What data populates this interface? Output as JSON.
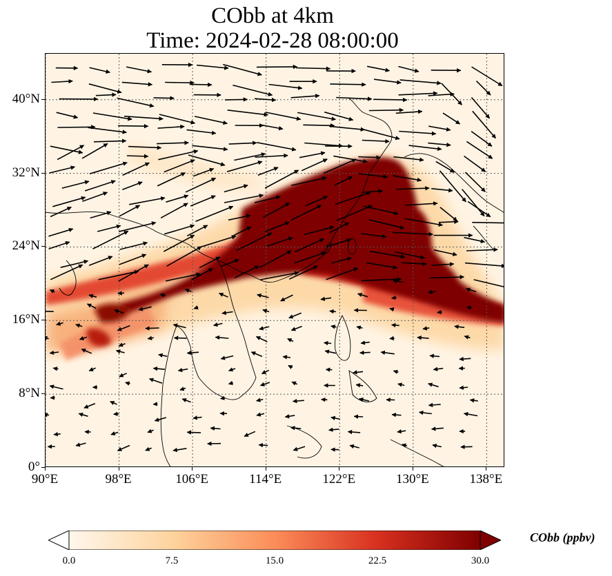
{
  "title": {
    "line1": "CObb at 4km",
    "line2": "Time: 2024-02-28 08:00:00"
  },
  "map": {
    "lon_range": [
      90,
      140
    ],
    "lat_range": [
      0,
      45
    ],
    "lat_ticks": [
      {
        "value": 40,
        "label": "40°N"
      },
      {
        "value": 32,
        "label": "32°N"
      },
      {
        "value": 24,
        "label": "24°N"
      },
      {
        "value": 16,
        "label": "16°N"
      },
      {
        "value": 8,
        "label": "8°N"
      },
      {
        "value": 0,
        "label": "0°"
      }
    ],
    "lon_ticks": [
      {
        "value": 90,
        "label": "90°E"
      },
      {
        "value": 98,
        "label": "98°E"
      },
      {
        "value": 106,
        "label": "106°E"
      },
      {
        "value": 114,
        "label": "114°E"
      },
      {
        "value": 122,
        "label": "122°E"
      },
      {
        "value": 130,
        "label": "130°E"
      },
      {
        "value": 138,
        "label": "138°E"
      }
    ],
    "gridlines": "dotted",
    "wind_vectors": "black arrows, predominantly westerly north of ~18°N, weak and variable in the south"
  },
  "colorbar": {
    "label": "CObb (ppbv)",
    "colormap": "OrRd",
    "range": [
      0,
      30
    ],
    "ticks": [
      "0.0",
      "7.5",
      "15.0",
      "22.5",
      "30.0"
    ],
    "extend": "both",
    "colors": [
      "#fff7ec",
      "#fdd49e",
      "#fc8d59",
      "#d7301f",
      "#7f0000"
    ]
  }
}
